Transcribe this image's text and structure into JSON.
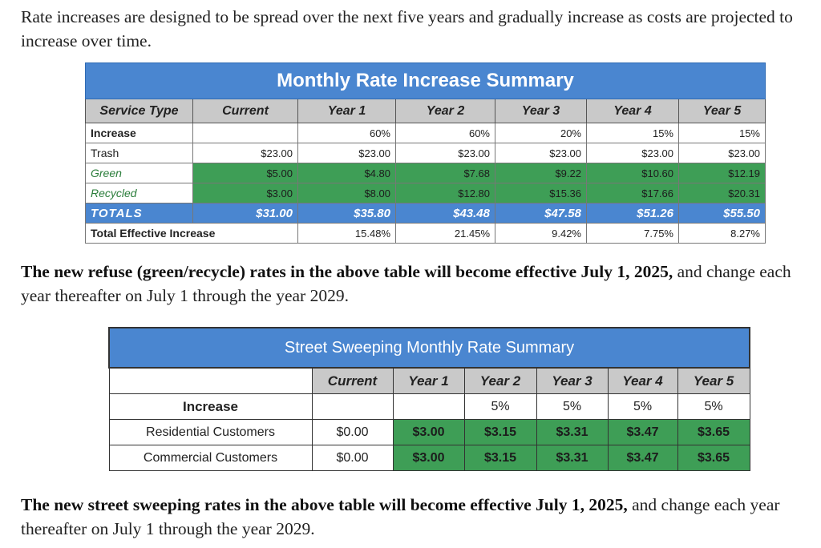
{
  "intro": "Rate increases are designed to be spread over the next five years and gradually increase as costs are projected to increase over time.",
  "table1": {
    "title": "Monthly Rate Increase Summary",
    "headers": [
      "Service Type",
      "Current",
      "Year 1",
      "Year 2",
      "Year 3",
      "Year 4",
      "Year 5"
    ],
    "increase": {
      "label": "Increase",
      "values": [
        "",
        "60%",
        "60%",
        "20%",
        "15%",
        "15%"
      ]
    },
    "trash": {
      "label": "Trash",
      "values": [
        "$23.00",
        "$23.00",
        "$23.00",
        "$23.00",
        "$23.00",
        "$23.00"
      ]
    },
    "green": {
      "label": "Green",
      "values": [
        "$5.00",
        "$4.80",
        "$7.68",
        "$9.22",
        "$10.60",
        "$12.19"
      ]
    },
    "recycled": {
      "label": "Recycled",
      "values": [
        "$3.00",
        "$8.00",
        "$12.80",
        "$15.36",
        "$17.66",
        "$20.31"
      ]
    },
    "totals": {
      "label": "TOTALS",
      "values": [
        "$31.00",
        "$35.80",
        "$43.48",
        "$47.58",
        "$51.26",
        "$55.50"
      ]
    },
    "effective": {
      "label": "Total Effective Increase",
      "values": [
        "",
        "15.48%",
        "21.45%",
        "9.42%",
        "7.75%",
        "8.27%"
      ]
    }
  },
  "note1": {
    "bold": "The new refuse (green/recycle) rates in the above table will become effective July 1, 2025,",
    "rest": " and change each year thereafter on July 1 through the year 2029."
  },
  "table2": {
    "title": "Street Sweeping Monthly Rate Summary",
    "headers": [
      "",
      "Current",
      "Year 1",
      "Year 2",
      "Year 3",
      "Year 4",
      "Year 5"
    ],
    "increase": {
      "label": "Increase",
      "values": [
        "",
        "",
        "5%",
        "5%",
        "5%",
        "5%"
      ]
    },
    "residential": {
      "label": "Residential Customers",
      "values": [
        "$0.00",
        "$3.00",
        "$3.15",
        "$3.31",
        "$3.47",
        "$3.65"
      ]
    },
    "commercial": {
      "label": "Commercial Customers",
      "values": [
        "$0.00",
        "$3.00",
        "$3.15",
        "$3.31",
        "$3.47",
        "$3.65"
      ]
    }
  },
  "note2": {
    "bold": "The new street sweeping rates in the above table will become effective July 1, 2025,",
    "rest": " and change each year thereafter on July 1 through the year 2029."
  }
}
